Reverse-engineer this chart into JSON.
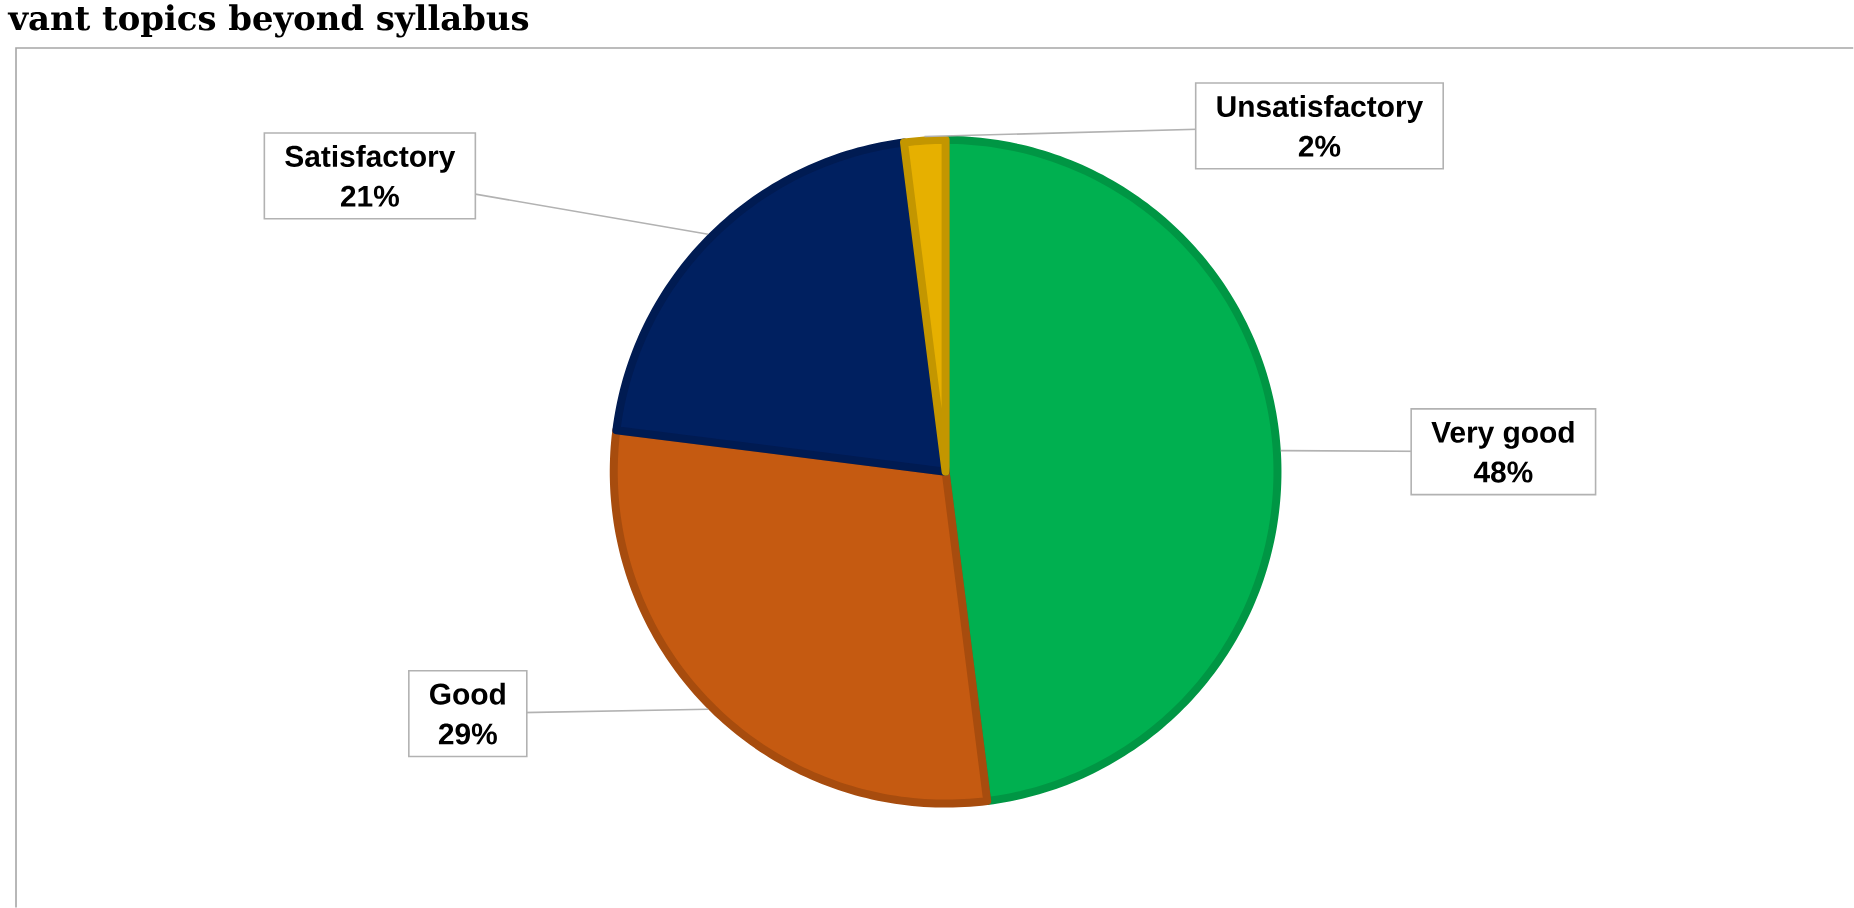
{
  "chart_data": {
    "type": "pie",
    "title": "vant topics beyond syllabus",
    "categories": [
      "Very good",
      "Good",
      "Satisfactory",
      "Unsatisfactory"
    ],
    "values": [
      48,
      29,
      21,
      2
    ],
    "value_labels": [
      "48%",
      "29%",
      "21%",
      "2%"
    ],
    "colors": [
      "#00b050",
      "#c55a11",
      "#002060",
      "#e6b000"
    ]
  }
}
